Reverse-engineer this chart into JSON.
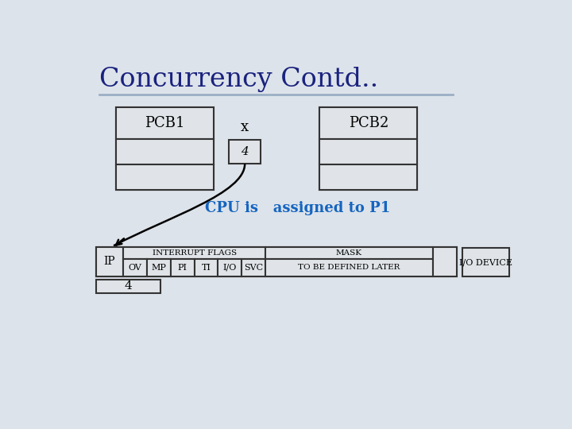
{
  "title": "Concurrency Contd..",
  "title_color": "#1a237e",
  "bg_color": "#dde3ea",
  "x_label": "x",
  "cpu_text": "CPU is   assigned to P1",
  "cpu_text_color": "#1565c0",
  "pcb1_label": "PCB1",
  "pcb2_label": "PCB2",
  "box4_label": "4",
  "ip_label": "IP",
  "interrupt_flags_label": "INTERRUPT FLAGS",
  "mask_label": "MASK",
  "flag_cols": [
    "OV",
    "MP",
    "PI",
    "TI",
    "I/O",
    "SVC"
  ],
  "mask_text": "TO BE DEFINED LATER",
  "io_device_label": "I/O DEVICE",
  "bottom_4_label": "4",
  "line_color": "#9ab0c4",
  "box_color": "#e0e4e8",
  "box_edge_color": "#333333"
}
